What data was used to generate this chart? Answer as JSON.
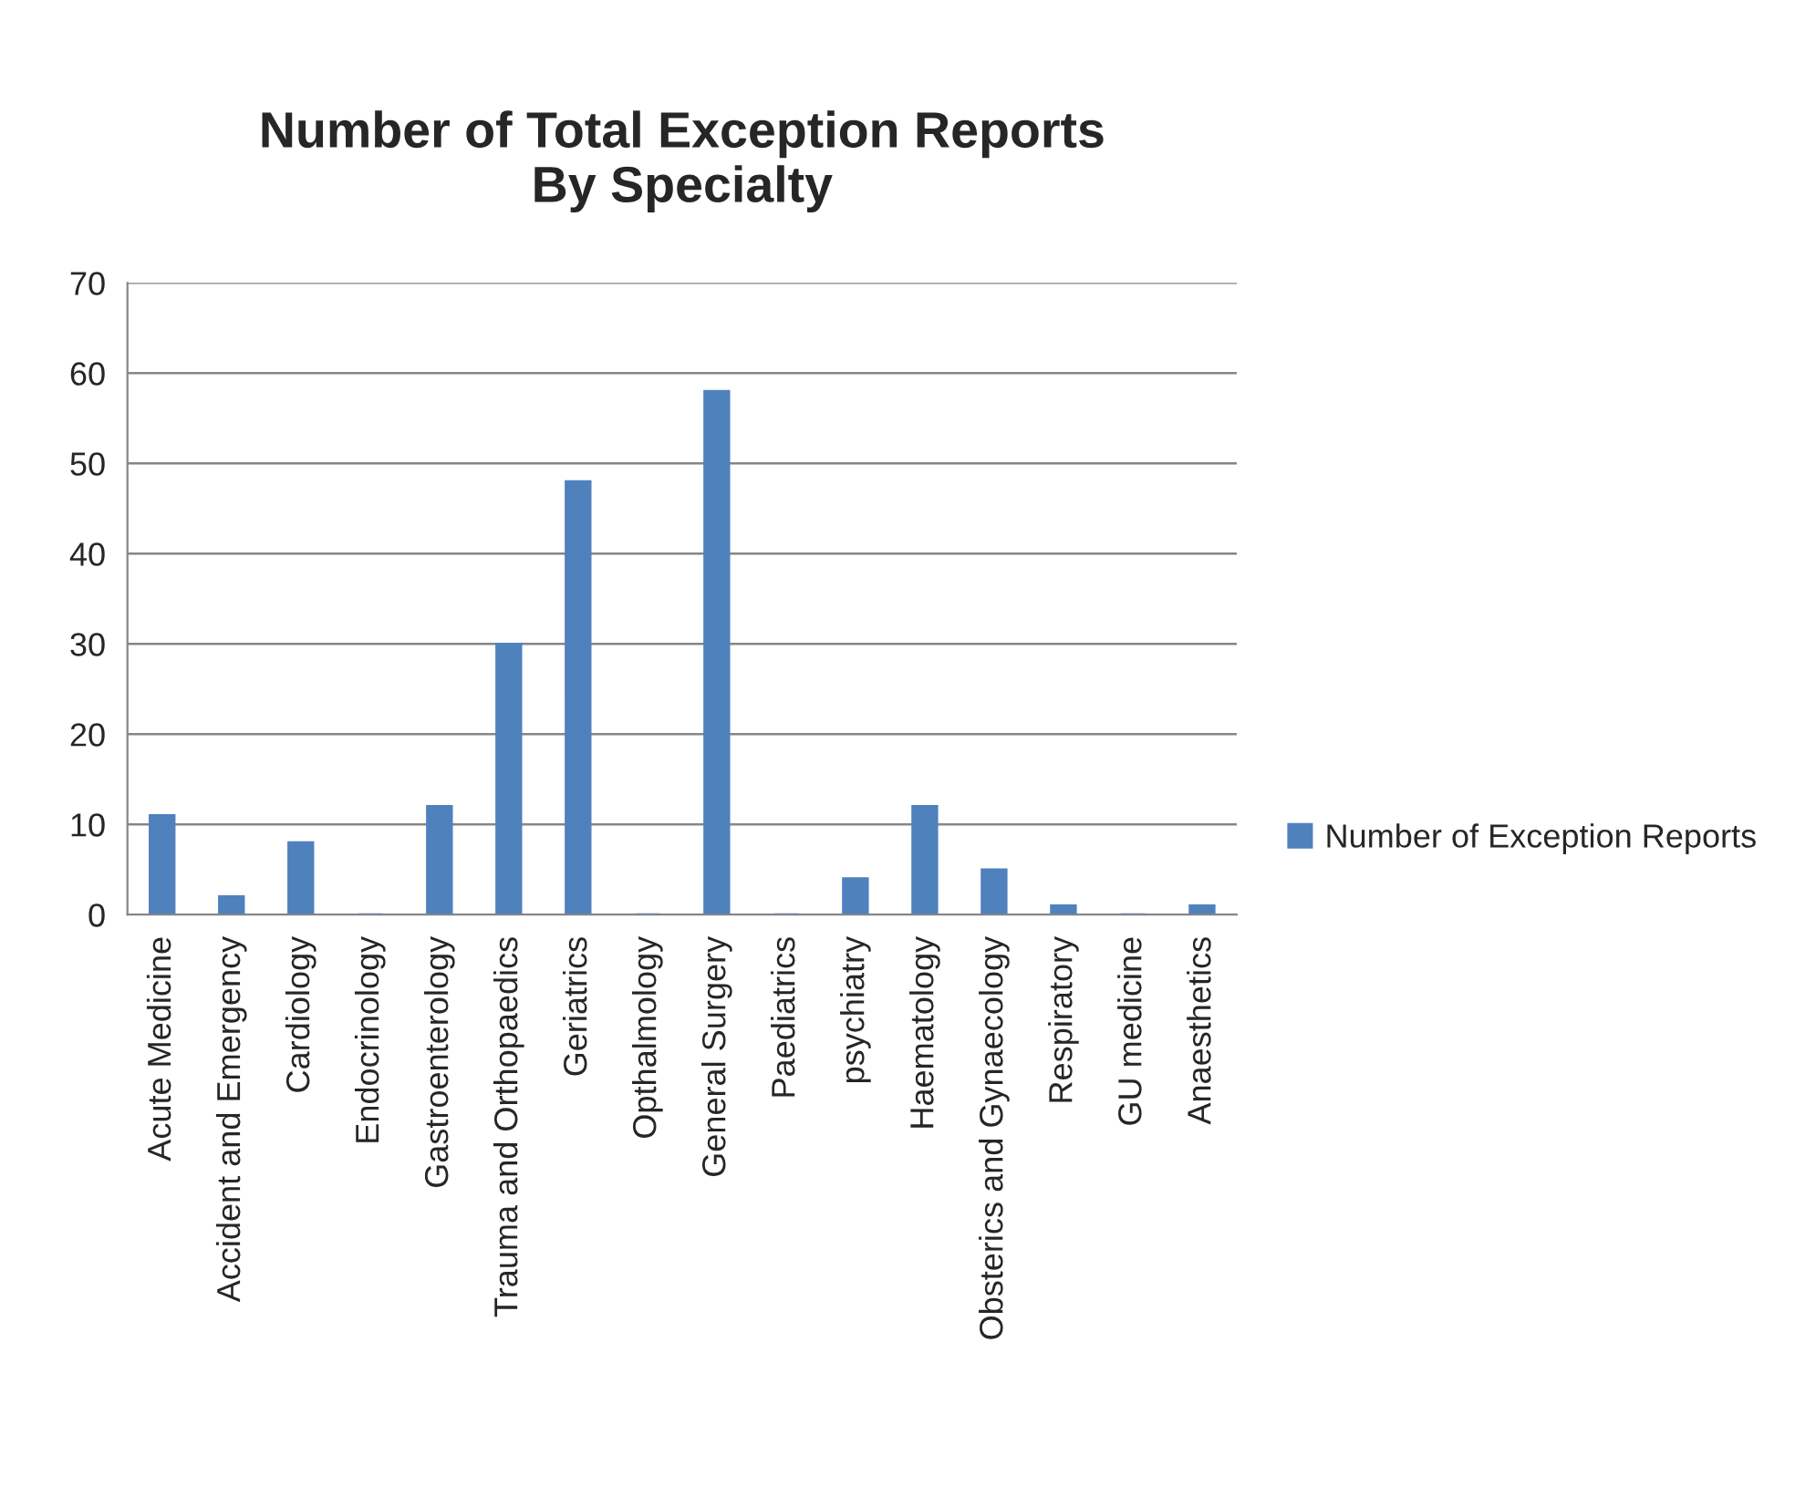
{
  "chart_data": {
    "type": "bar",
    "title": "Number of Total Exception Reports\nBy Specialty",
    "categories": [
      "Acute Medicine",
      "Accident and Emergency",
      "Cardiology",
      "Endocrinology",
      "Gastroenterology",
      "Trauma and Orthopaedics",
      "Geriatrics",
      "Opthalmology",
      "General Surgery",
      "Paediatrics",
      "psychiatry",
      "Haematology",
      "Obsterics and Gynaecology",
      "Respiratory",
      "GU medicine",
      "Anaesthetics"
    ],
    "series": [
      {
        "name": "Number of Exception Reports",
        "color": "#4f81bd",
        "values": [
          11,
          2,
          8,
          0,
          12,
          30,
          48,
          0,
          58,
          0,
          4,
          12,
          5,
          1,
          0,
          1
        ]
      }
    ],
    "ylim": [
      0,
      70
    ],
    "yticks": [
      0,
      10,
      20,
      30,
      40,
      50,
      60,
      70
    ],
    "grid": "y",
    "legend": "right"
  }
}
